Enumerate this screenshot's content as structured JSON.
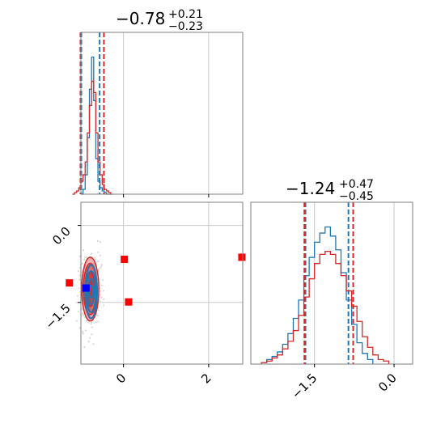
{
  "colors": {
    "blue": "#1f77b4",
    "red": "#d62728",
    "red_fill": "#e8a3a3",
    "grid": "#c8c8c8",
    "frame": "#000000",
    "scatter": "#d9d9d9",
    "marker_red": "#ff0000",
    "marker_blue": "#0000ff"
  },
  "chart_data": [
    {
      "type": "histogram",
      "panel": "top-left",
      "param_index": 0,
      "title": {
        "median": "−0.78",
        "plus": "+0.21",
        "minus": "−0.23"
      },
      "xlim": [
        -1.0,
        2.8
      ],
      "x_ticks": [
        0,
        2
      ],
      "x_tick_labels": [
        "0",
        "2"
      ],
      "grid": true,
      "series": [
        {
          "color": "#1f77b4",
          "bins": [
            -1.0,
            -0.95,
            -0.9,
            -0.85,
            -0.8,
            -0.75,
            -0.7,
            -0.65,
            -0.6,
            -0.55,
            -0.5,
            -0.45,
            -0.4,
            -0.35,
            -0.3
          ],
          "counts": [
            0,
            0.03,
            0.12,
            0.35,
            0.65,
            0.85,
            0.58,
            0.22,
            0.08,
            0.04,
            0.02,
            0.01,
            0,
            0
          ],
          "quantile_lines": [
            -0.99,
            -0.56
          ]
        },
        {
          "color": "#d62728",
          "bins": [
            -1.2,
            -1.15,
            -1.1,
            -1.05,
            -1.0,
            -0.95,
            -0.9,
            -0.85,
            -0.8,
            -0.75,
            -0.7,
            -0.65,
            -0.6,
            -0.55,
            -0.5,
            -0.45,
            -0.4,
            -0.35,
            -0.3,
            -0.25
          ],
          "counts": [
            0,
            0.01,
            0.02,
            0.04,
            0.08,
            0.12,
            0.2,
            0.38,
            0.55,
            0.7,
            0.63,
            0.38,
            0.2,
            0.12,
            0.06,
            0.03,
            0.02,
            0.01,
            0
          ],
          "quantile_lines": [
            -1.01,
            -0.46
          ]
        }
      ]
    },
    {
      "type": "contour-scatter",
      "panel": "bottom-left",
      "xlim": [
        -1.0,
        2.8
      ],
      "ylim": [
        -2.7,
        0.45
      ],
      "x_ticks": [
        0,
        2
      ],
      "x_tick_labels": [
        "0",
        "2"
      ],
      "y_ticks": [
        0,
        -1.5
      ],
      "y_tick_labels": [
        "0.0",
        "−1.5"
      ],
      "grid": true,
      "contours": {
        "center": [
          -0.78,
          -1.24
        ],
        "red_levels_sd": [
          [
            0.2,
            0.62
          ],
          [
            0.16,
            0.5
          ],
          [
            0.1,
            0.34
          ],
          [
            0.05,
            0.16
          ]
        ],
        "blue_levels_sd": [
          [
            0.14,
            0.52
          ],
          [
            0.11,
            0.4
          ],
          [
            0.07,
            0.25
          ],
          [
            0.035,
            0.12
          ]
        ]
      },
      "markers": [
        {
          "x": -1.27,
          "y": -1.12,
          "color": "#ff0000"
        },
        {
          "x": 0.02,
          "y": -0.66,
          "color": "#ff0000"
        },
        {
          "x": 2.78,
          "y": -0.62,
          "color": "#ff0000"
        },
        {
          "x": 0.12,
          "y": -1.49,
          "color": "#ff0000"
        },
        {
          "x": -0.88,
          "y": -1.22,
          "color": "#0000ff"
        }
      ]
    },
    {
      "type": "histogram",
      "panel": "bottom-right",
      "param_index": 1,
      "title": {
        "median": "−1.24",
        "plus": "+0.47",
        "minus": "−0.45"
      },
      "xlim": [
        -2.7,
        0.35
      ],
      "x_ticks": [
        -1.5,
        0.0
      ],
      "x_tick_labels": [
        "−1.5",
        "0.0"
      ],
      "grid": true,
      "series": [
        {
          "color": "#1f77b4",
          "bins": [
            -2.5,
            -2.4,
            -2.3,
            -2.2,
            -2.1,
            -2.0,
            -1.9,
            -1.8,
            -1.7,
            -1.6,
            -1.5,
            -1.4,
            -1.3,
            -1.2,
            -1.1,
            -1.0,
            -0.9,
            -0.8,
            -0.7,
            -0.6,
            -0.5,
            -0.4
          ],
          "counts": [
            0.01,
            0.03,
            0.05,
            0.08,
            0.13,
            0.2,
            0.3,
            0.42,
            0.58,
            0.7,
            0.8,
            0.86,
            0.9,
            0.84,
            0.75,
            0.6,
            0.42,
            0.26,
            0.14,
            0.07,
            0.03
          ],
          "quantile_lines": [
            -1.67,
            -0.86
          ]
        },
        {
          "color": "#d62728",
          "bins": [
            -2.5,
            -2.4,
            -2.3,
            -2.2,
            -2.1,
            -2.0,
            -1.9,
            -1.8,
            -1.7,
            -1.6,
            -1.5,
            -1.4,
            -1.3,
            -1.2,
            -1.1,
            -1.0,
            -0.9,
            -0.8,
            -0.7,
            -0.6,
            -0.5,
            -0.4,
            -0.3,
            -0.2,
            -0.1
          ],
          "counts": [
            0.01,
            0.02,
            0.04,
            0.06,
            0.1,
            0.15,
            0.22,
            0.32,
            0.44,
            0.56,
            0.66,
            0.72,
            0.74,
            0.72,
            0.66,
            0.58,
            0.48,
            0.38,
            0.28,
            0.18,
            0.11,
            0.06,
            0.03,
            0.02
          ],
          "quantile_lines": [
            -1.69,
            -0.77
          ]
        }
      ]
    }
  ]
}
